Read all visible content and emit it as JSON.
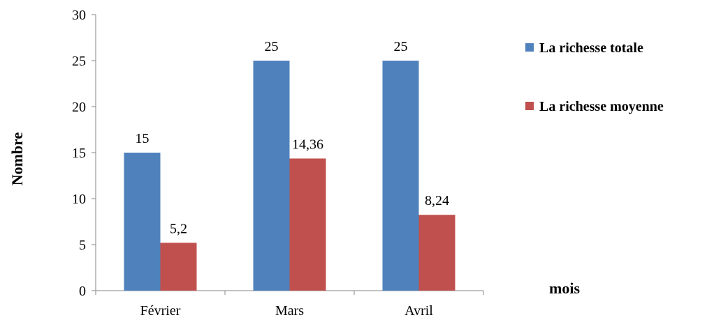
{
  "chart_data": {
    "type": "bar",
    "categories": [
      "Février",
      "Mars",
      "Avril"
    ],
    "series": [
      {
        "name": "La richesse totale",
        "values": [
          15,
          25,
          25
        ],
        "labels": [
          "15",
          "25",
          "25"
        ],
        "color": "#4F81BD"
      },
      {
        "name": "La richesse moyenne",
        "values": [
          5.2,
          14.36,
          8.24
        ],
        "labels": [
          "5,2",
          "14,36",
          "8,24"
        ],
        "color": "#C0504D"
      }
    ],
    "ylabel": "Nombre",
    "xlabel": "mois",
    "ylim": [
      0,
      30
    ],
    "yticks": [
      0,
      5,
      10,
      15,
      20,
      25,
      30
    ],
    "grid": false,
    "legend": "right"
  }
}
